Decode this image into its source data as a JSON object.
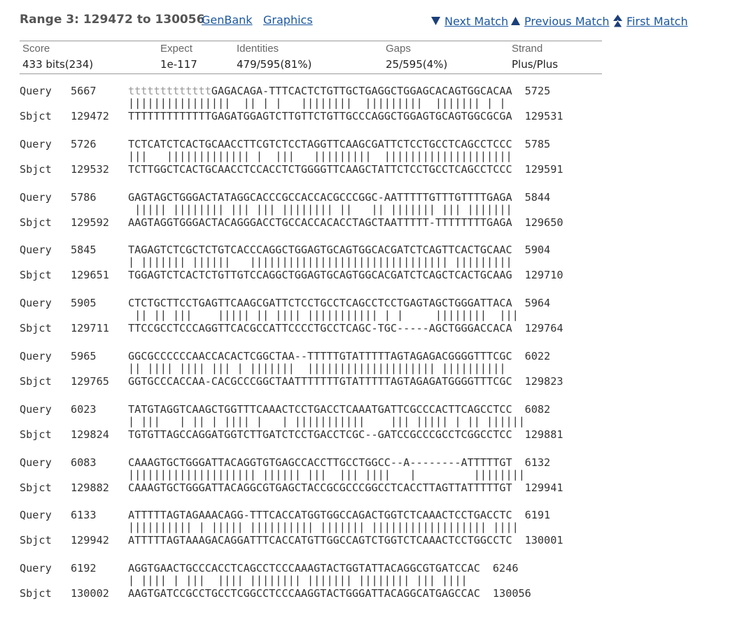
{
  "header": {
    "range_title": "Range 3: 129472 to 130056",
    "genbank_link": "GenBank",
    "graphics_link": "Graphics",
    "next_match": "Next Match",
    "previous_match": "Previous Match",
    "first_match": "First Match"
  },
  "stats": {
    "score": {
      "label": "Score",
      "value": "433 bits(234)"
    },
    "expect": {
      "label": "Expect",
      "value": "1e-117"
    },
    "identities": {
      "label": "Identities",
      "value": "479/595(81%)"
    },
    "gaps": {
      "label": "Gaps",
      "value": "25/595(4%)"
    },
    "strand": {
      "label": "Strand",
      "value": "Plus/Plus"
    }
  },
  "alignment": {
    "query_label": "Query",
    "sbjct_label": "Sbjct",
    "blocks": [
      {
        "q_start": "5667",
        "q_low": "ttttttttttttt",
        "q_seq": "GAGACAGA-TTTCACTCTGTTGCTGAGGCTGGAGCACAGTGGCACAA",
        "q_end": "5725",
        "match": "||||||||||||||||  || | |   ||||||||  |||||||||  ||||||| | |",
        "s_start": "129472",
        "s_seq": "TTTTTTTTTTTTTGAGATGGAGTCTTGTTCTGTTGCCCAGGCTGGAGTGCAGTGGCGCGA",
        "s_end": "129531"
      },
      {
        "q_start": "5726",
        "q_low": "",
        "q_seq": "TCTCATCTCACTGCAACCTTCGTCTCCTAGGTTCAAGCGATTCTCCTGCCTCAGCCTCCC",
        "q_end": "5785",
        "match": "|||   ||||||||||||| |  |||   |||||||||  ||||||||||||||||||||",
        "s_start": "129532",
        "s_seq": "TCTTGGCTCACTGCAACCTCCACCTCTGGGGTTCAAGCTATTCTCCTGCCTCAGCCTCCC",
        "s_end": "129591"
      },
      {
        "q_start": "5786",
        "q_low": "",
        "q_seq": "GAGTAGCTGGGACTATAGGCACCCGCCACCACGCCCGGC-AATTTTTGTTTGTTTTGAGA",
        "q_end": "5844",
        "match": " ||||| |||||||| ||| ||| |||||||| ||   || ||||||| ||| |||||||",
        "s_start": "129592",
        "s_seq": "AAGTAGGTGGGACTACAGGGACCTGCCACCACACCTAGCTAATTTTT-TTTTTTTTGAGA",
        "s_end": "129650"
      },
      {
        "q_start": "5845",
        "q_low": "",
        "q_seq": "TAGAGTCTCGCTCTGTCACCCAGGCTGGAGTGCAGTGGCACGATCTCAGTTCACTGCAAC",
        "q_end": "5904",
        "match": "| ||||||| ||||||   ||||||||||||||||||||||||||||||| |||||||||",
        "s_start": "129651",
        "s_seq": "TGGAGTCTCACTCTGTTGTCCAGGCTGGAGTGCAGTGGCACGATCTCAGCTCACTGCAAG",
        "s_end": "129710"
      },
      {
        "q_start": "5905",
        "q_low": "",
        "q_seq": "CTCTGCTTCCTGAGTTCAAGCGATTCTCCTGCCTCAGCCTCCTGAGTAGCTGGGATTACA",
        "q_end": "5964",
        "match": " || || |||    ||||| || |||| ||||||||||| | |     ||||||||  |||",
        "s_start": "129711",
        "s_seq": "TTCCGCCTCCCAGGTTCACGCCATTCCCCTGCCTCAGC-TGC-----AGCTGGGACCACA",
        "s_end": "129764"
      },
      {
        "q_start": "5965",
        "q_low": "",
        "q_seq": "GGCGCCCCCCAACCACACTCGGCTAA--TTTTTGTATTTTTAGTAGAGACGGGGTTTCGC",
        "q_end": "6022",
        "match": "|| |||| |||| ||| | |||||||  |||||||||||||||||||| ||||||||||",
        "s_start": "129765",
        "s_seq": "GGTGCCCACCAA-CACGCCCGGCTAATTTTTTTGTATTTTTAGTAGAGATGGGGTTTCGC",
        "s_end": "129823"
      },
      {
        "q_start": "6023",
        "q_low": "",
        "q_seq": "TATGTAGGTCAAGCTGGTTTCAAACTCCTGACCTCAAATGATTCGCCCACTTCAGCCTCC",
        "q_end": "6082",
        "match": "| |||   | || | |||| |   | |||||||||||    ||| ||||| | || ||||||",
        "s_start": "129824",
        "s_seq": "TGTGTTAGCCAGGATGGTCTTGATCTCCTGACCTCGC--GATCCGCCCGCCTCGGCCTCC",
        "s_end": "129881"
      },
      {
        "q_start": "6083",
        "q_low": "",
        "q_seq": "CAAAGTGCTGGGATTACAGGTGTGAGCCACCTTGCCTGGCC--A--------ATTTTTGT",
        "q_end": "6132",
        "match": "|||||||||||||||||||| |||||| |||  ||| ||||   |         ||||||||",
        "s_start": "129882",
        "s_seq": "CAAAGTGCTGGGATTACAGGCGTGAGCTACCGCGCCCGGCCTCACCTTAGTTATTTTTGT",
        "s_end": "129941"
      },
      {
        "q_start": "6133",
        "q_low": "",
        "q_seq": "ATTTTTAGTAGAAACAGG-TTTCACCATGGTGGCCAGACTGGTCTCAAACTCCTGACCTC",
        "q_end": "6191",
        "match": "|||||||||| | ||||| |||||||||| ||||||| |||||||||||||||||| ||||",
        "s_start": "129942",
        "s_seq": "ATTTTTAGTAAAGACAGGATTTCACCATGTTGGCCAGTCTGGTCTCAAACTCCTGGCCTC",
        "s_end": "130001"
      },
      {
        "q_start": "6192",
        "q_low": "",
        "q_seq": "AGGTGAACTGCCCACCTCAGCCTCCCAAAGTACTGGTATTACAGGCGTGATCCAC",
        "q_end": "6246",
        "match": "| |||| | |||  |||| |||||||| ||||||| |||||||| ||| ||||",
        "s_start": "130002",
        "s_seq": "AAGTGATCCGCCTGCCTCGGCCTCCCAAGGTACTGGGATTACAGGCATGAGCCAC",
        "s_end": "130056"
      }
    ]
  }
}
